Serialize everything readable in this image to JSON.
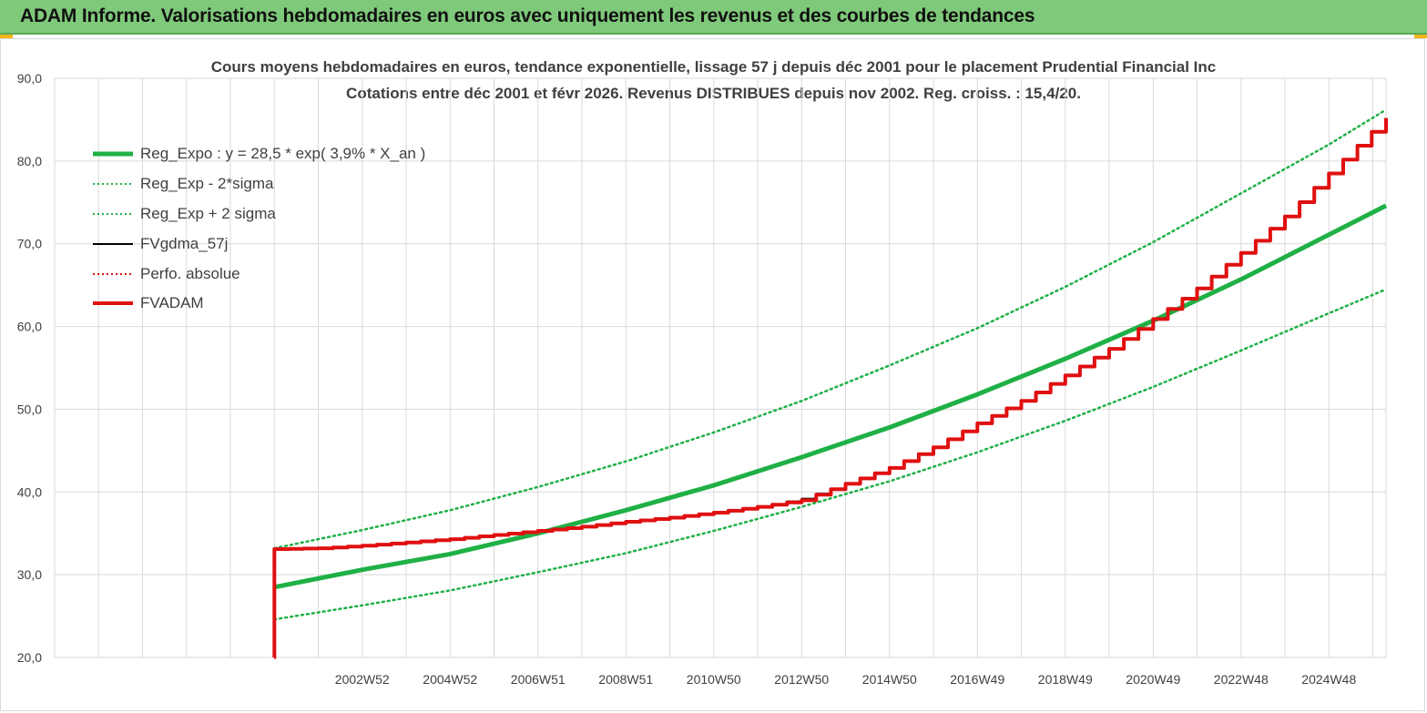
{
  "header": {
    "title": "ADAM Informe. Valorisations hebdomadaires en euros avec uniquement les revenus et des courbes de tendances"
  },
  "colors": {
    "banner": "#7fc97a",
    "green": "#1fb046",
    "red": "#e01010",
    "black": "#000000",
    "grid": "#d9d9d9",
    "text": "#404040"
  },
  "chart_data": {
    "type": "line",
    "title_line1": "Cours moyens hebdomadaires en euros, tendance exponentielle, lissage 57 j depuis déc 2001 pour le placement Prudential Financial Inc",
    "title_line2": "Cotations entre déc 2001 et févr 2026. Revenus DISTRIBUES depuis nov 2002. Reg. croiss. : 15,4/20.",
    "xlabel": "",
    "ylabel": "",
    "ylim": [
      20,
      90
    ],
    "xlim": [
      1996.0,
      2026.3
    ],
    "y_ticks": [
      "20,0",
      "30,0",
      "40,0",
      "50,0",
      "60,0",
      "70,0",
      "80,0",
      "90,0"
    ],
    "x_tick_labels": [
      {
        "label": "2002W52",
        "year": 2003.0
      },
      {
        "label": "2004W52",
        "year": 2005.0
      },
      {
        "label": "2006W51",
        "year": 2007.0
      },
      {
        "label": "2008W51",
        "year": 2009.0
      },
      {
        "label": "2010W50",
        "year": 2011.0
      },
      {
        "label": "2012W50",
        "year": 2013.0
      },
      {
        "label": "2014W50",
        "year": 2015.0
      },
      {
        "label": "2016W49",
        "year": 2017.0
      },
      {
        "label": "2018W49",
        "year": 2019.0
      },
      {
        "label": "2020W49",
        "year": 2021.0
      },
      {
        "label": "2022W48",
        "year": 2023.0
      },
      {
        "label": "2024W48",
        "year": 2025.0
      }
    ],
    "grid": true,
    "legend_position": "top-left",
    "series": [
      {
        "name": "Reg_Expo : y = 28,5 * exp( 3,9% *  X_an )",
        "style": "solid-thick",
        "color": "#1fb046",
        "x": [
          2001.0,
          2003.0,
          2005.0,
          2007.0,
          2009.0,
          2011.0,
          2013.0,
          2015.0,
          2017.0,
          2019.0,
          2021.0,
          2023.0,
          2025.0,
          2026.3
        ],
        "y": [
          28.5,
          30.6,
          32.5,
          35.0,
          37.8,
          40.8,
          44.2,
          47.8,
          51.8,
          56.1,
          60.7,
          65.7,
          71.1,
          74.6
        ]
      },
      {
        "name": "Reg_Exp - 2*sigma",
        "style": "dotted",
        "color": "#1fb046",
        "x": [
          2001.0,
          2003.0,
          2005.0,
          2007.0,
          2009.0,
          2011.0,
          2013.0,
          2015.0,
          2017.0,
          2019.0,
          2021.0,
          2023.0,
          2025.0,
          2026.3
        ],
        "y": [
          24.6,
          26.3,
          28.1,
          30.3,
          32.6,
          35.3,
          38.2,
          41.3,
          44.8,
          48.6,
          52.7,
          57.1,
          61.6,
          64.5
        ]
      },
      {
        "name": "Reg_Exp + 2 sigma",
        "style": "dotted",
        "color": "#1fb046",
        "x": [
          2001.0,
          2003.0,
          2005.0,
          2007.0,
          2009.0,
          2011.0,
          2013.0,
          2015.0,
          2017.0,
          2019.0,
          2021.0,
          2023.0,
          2025.0,
          2026.3
        ],
        "y": [
          33.2,
          35.4,
          37.8,
          40.6,
          43.7,
          47.2,
          51.0,
          55.3,
          59.8,
          64.8,
          70.2,
          76.1,
          82.0,
          86.2
        ]
      },
      {
        "name": "FVgdma_57j",
        "style": "solid",
        "color": "#000000",
        "x": [
          2001.0,
          2001.0,
          2002.0,
          2003.0,
          2004.0,
          2005.0,
          2006.0,
          2007.0,
          2008.0,
          2009.0,
          2010.0,
          2011.0,
          2012.0,
          2013.0,
          2014.0,
          2015.0,
          2016.0,
          2017.0,
          2018.0,
          2019.0,
          2020.0,
          2021.0,
          2022.0,
          2023.0,
          2024.0,
          2025.0,
          2026.3
        ],
        "y": [
          20.0,
          33.1,
          33.2,
          33.5,
          33.9,
          34.3,
          34.8,
          35.3,
          35.8,
          36.4,
          36.9,
          37.5,
          38.2,
          39.2,
          41.0,
          42.9,
          45.4,
          48.3,
          51.0,
          54.1,
          57.3,
          60.9,
          64.6,
          68.9,
          73.3,
          78.5,
          85.2
        ]
      },
      {
        "name": "Perfo. absolue",
        "style": "dotted",
        "color": "#e01010",
        "x": [],
        "y": []
      },
      {
        "name": "FVADAM",
        "style": "solid-thick",
        "color": "#e01010",
        "x": [
          2001.0,
          2001.0,
          2002.0,
          2003.0,
          2004.0,
          2005.0,
          2006.0,
          2007.0,
          2008.0,
          2009.0,
          2010.0,
          2011.0,
          2012.0,
          2013.0,
          2014.0,
          2015.0,
          2016.0,
          2017.0,
          2018.0,
          2019.0,
          2020.0,
          2021.0,
          2022.0,
          2023.0,
          2024.0,
          2025.0,
          2026.3
        ],
        "y": [
          20.0,
          33.1,
          33.2,
          33.5,
          33.9,
          34.3,
          34.8,
          35.3,
          35.8,
          36.4,
          36.9,
          37.5,
          38.2,
          39.0,
          41.0,
          42.9,
          45.4,
          48.3,
          51.0,
          54.1,
          57.3,
          60.9,
          64.6,
          68.9,
          73.3,
          78.5,
          85.2
        ]
      }
    ]
  }
}
